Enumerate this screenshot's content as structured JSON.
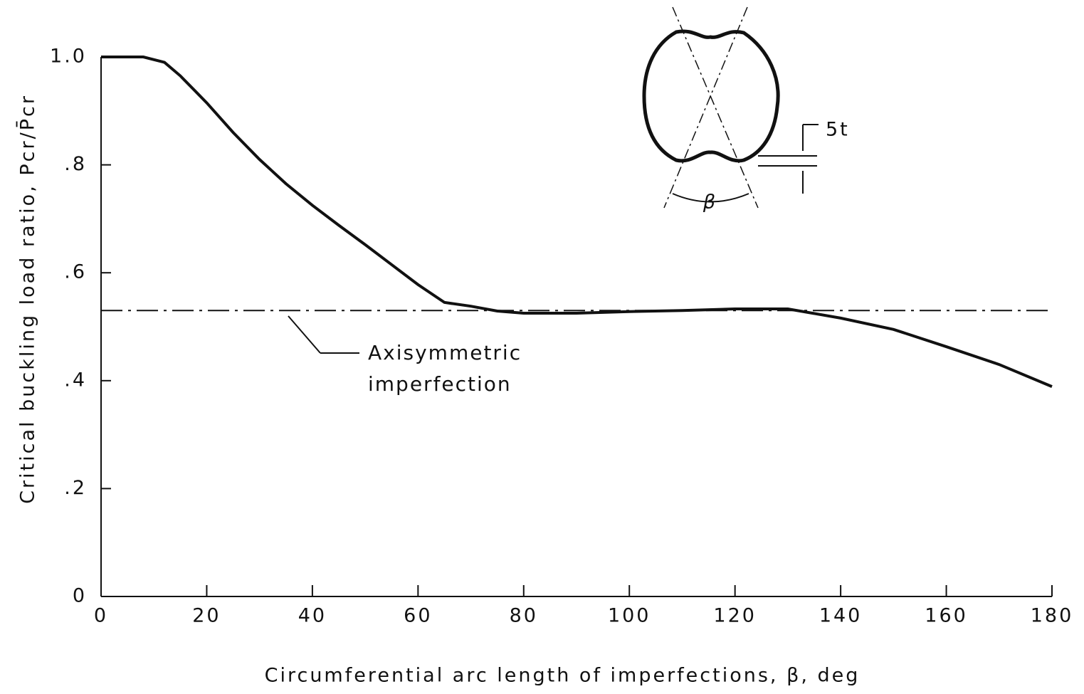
{
  "chart_data": {
    "type": "line",
    "xlabel": "Circumferential arc length of imperfections, β, deg",
    "ylabel": "Critical buckling load ratio,  Pcr/P̄cr",
    "xlim": [
      0,
      180
    ],
    "ylim": [
      0,
      1.0
    ],
    "xticks": [
      0,
      20,
      40,
      60,
      80,
      100,
      120,
      140,
      160,
      180
    ],
    "yticks": [
      0,
      {
        "value": 0.2,
        "label": ".2"
      },
      {
        "value": 0.4,
        "label": ".4"
      },
      {
        "value": 0.6,
        "label": ".6"
      },
      {
        "value": 0.8,
        "label": ".8"
      },
      {
        "value": 1.0,
        "label": "1.0"
      }
    ],
    "series": [
      {
        "color": "#111111",
        "style": "solid",
        "x": [
          0,
          5,
          8,
          12,
          15,
          20,
          25,
          30,
          35,
          40,
          45,
          50,
          55,
          60,
          65,
          70,
          75,
          80,
          90,
          100,
          110,
          120,
          130,
          140,
          150,
          160,
          170,
          180
        ],
        "values": [
          1.0,
          1.0,
          1.0,
          0.99,
          0.965,
          0.915,
          0.86,
          0.81,
          0.765,
          0.725,
          0.688,
          0.652,
          0.615,
          0.578,
          0.545,
          0.538,
          0.529,
          0.525,
          0.525,
          0.528,
          0.53,
          0.533,
          0.533,
          0.516,
          0.495,
          0.463,
          0.43,
          0.389
        ]
      },
      {
        "name": "Axisymmetric imperfection",
        "color": "#111111",
        "style": "dashdot",
        "x": [
          0,
          180
        ],
        "values": [
          0.53,
          0.53
        ]
      }
    ],
    "inset_labels": [
      "5t",
      "β"
    ]
  }
}
